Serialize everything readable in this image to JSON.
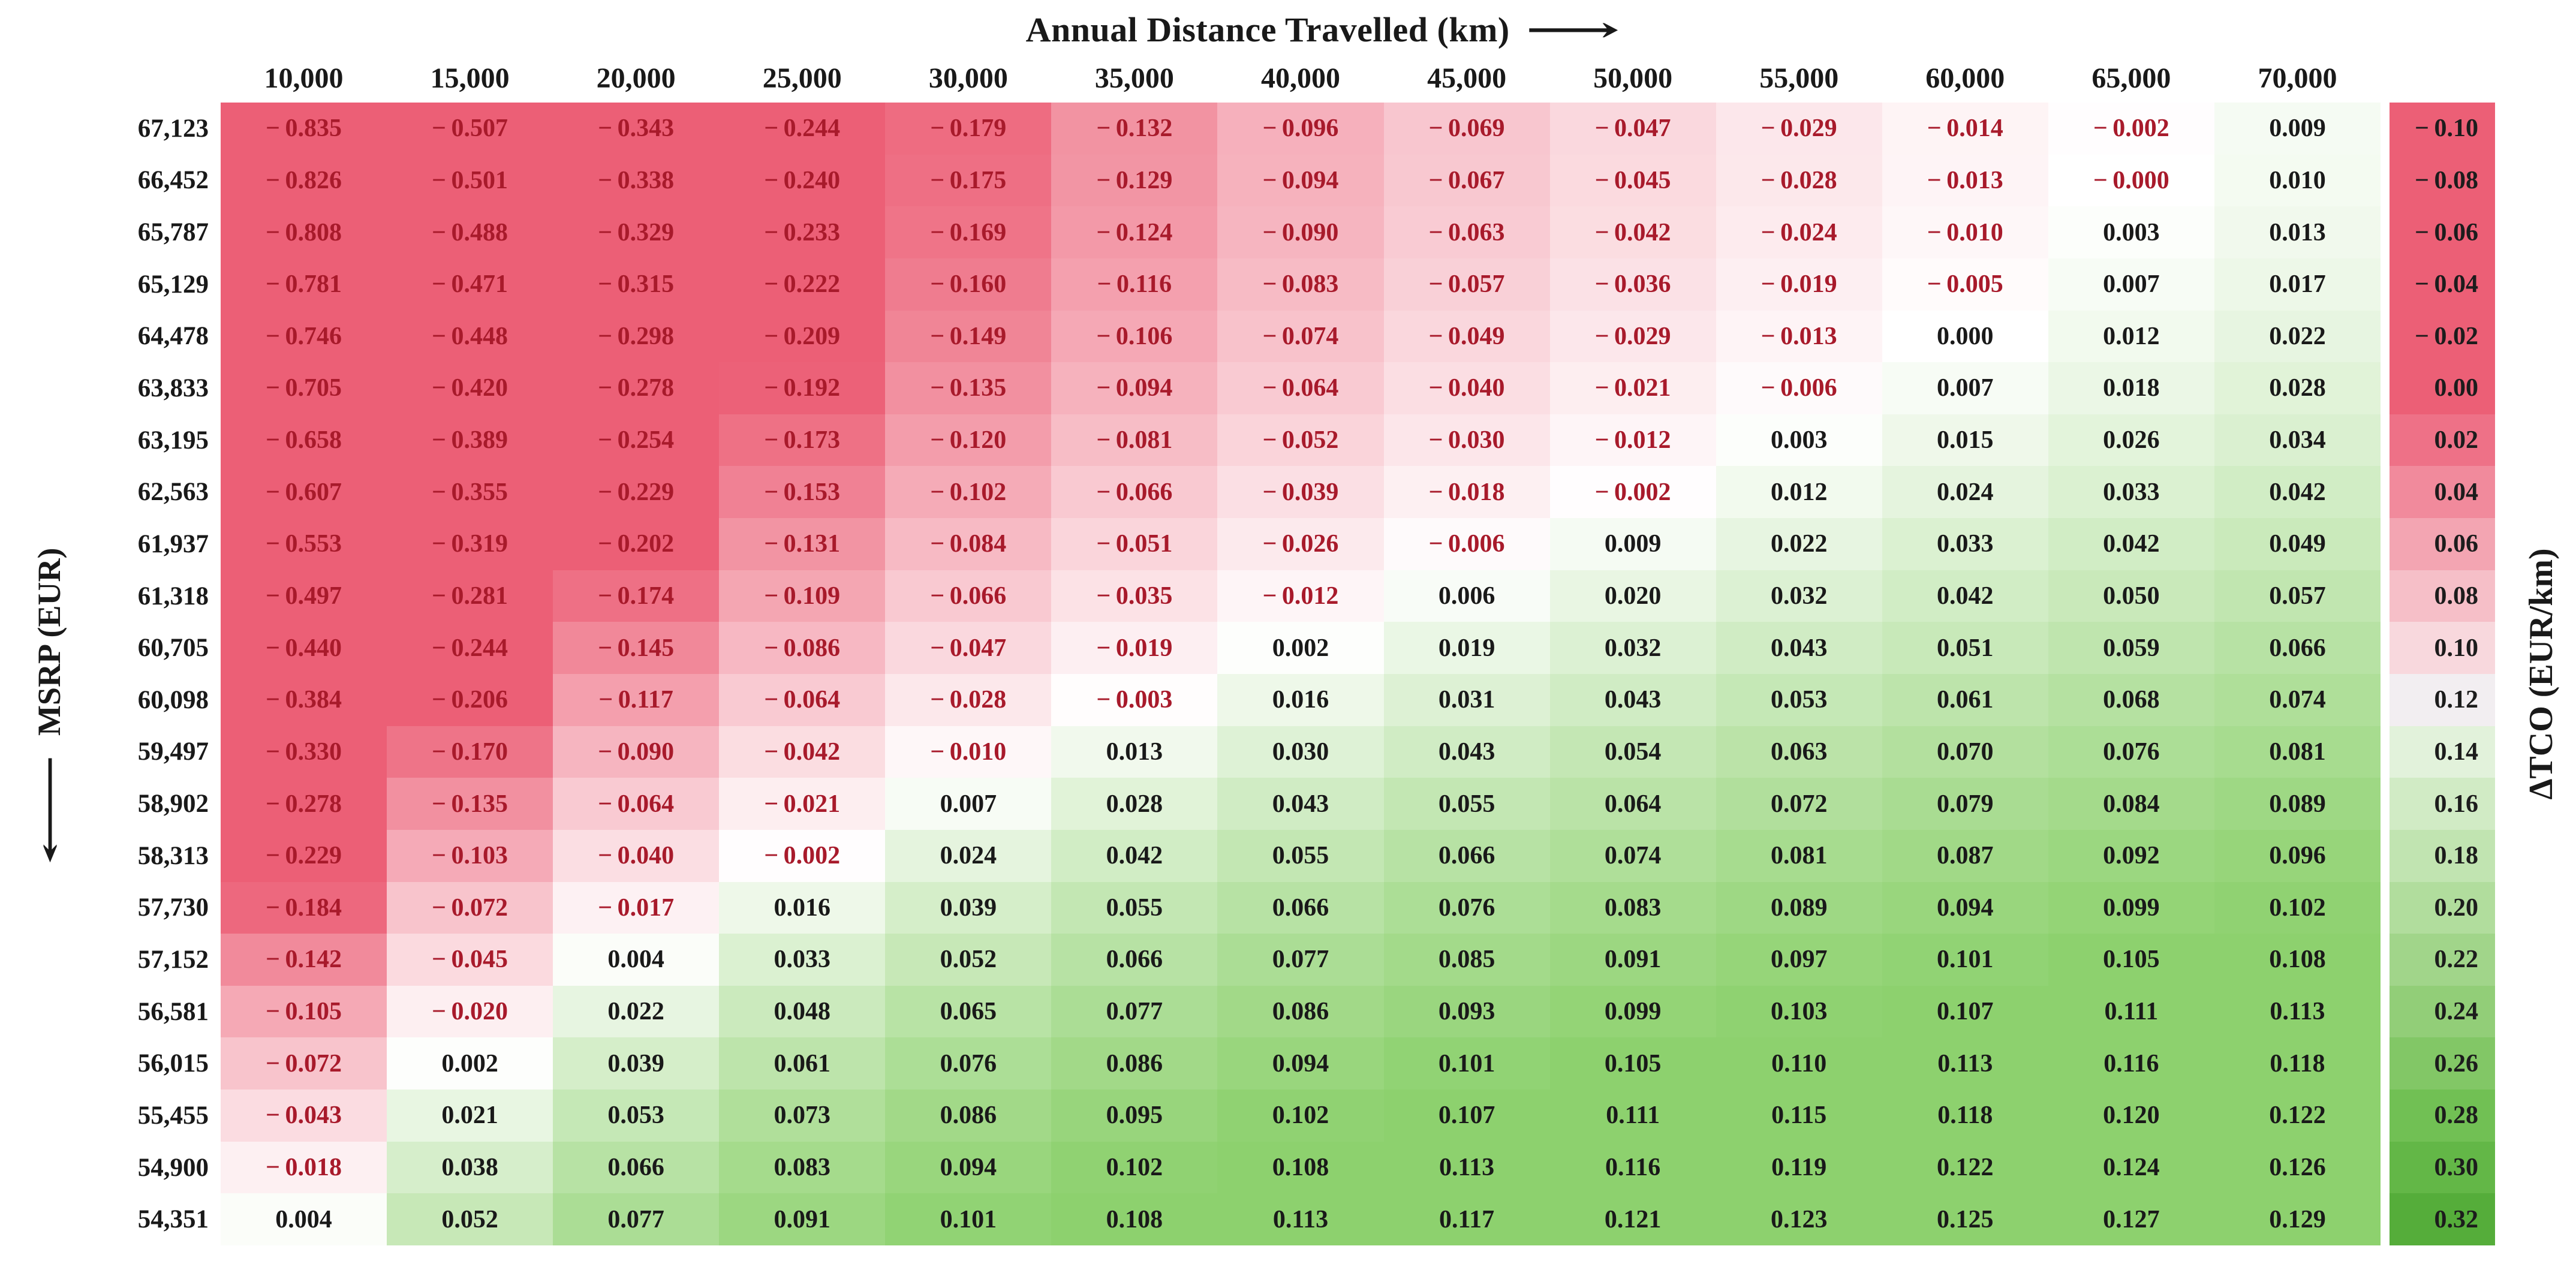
{
  "chart_data": {
    "type": "heatmap",
    "title": "Annual Distance Travelled (km)",
    "x_axis_title": "Annual Distance Travelled (km)",
    "y_axis_title": "MSRP (EUR)",
    "colorbar_title": "ΔTCO (EUR/km)",
    "columns": [
      "10,000",
      "15,000",
      "20,000",
      "25,000",
      "30,000",
      "35,000",
      "40,000",
      "45,000",
      "50,000",
      "55,000",
      "60,000",
      "65,000",
      "70,000"
    ],
    "rows": [
      "67,123",
      "66,452",
      "65,787",
      "65,129",
      "64,478",
      "63,833",
      "63,195",
      "62,563",
      "61,937",
      "61,318",
      "60,705",
      "60,098",
      "59,497",
      "58,902",
      "58,313",
      "57,730",
      "57,152",
      "56,581",
      "56,015",
      "55,455",
      "54,900",
      "54,351"
    ],
    "values": [
      [
        "-0.835",
        "-0.507",
        "-0.343",
        "-0.244",
        "-0.179",
        "-0.132",
        "-0.096",
        "-0.069",
        "-0.047",
        "-0.029",
        "-0.014",
        "-0.002",
        "0.009"
      ],
      [
        "-0.826",
        "-0.501",
        "-0.338",
        "-0.240",
        "-0.175",
        "-0.129",
        "-0.094",
        "-0.067",
        "-0.045",
        "-0.028",
        "-0.013",
        "-0.000",
        "0.010"
      ],
      [
        "-0.808",
        "-0.488",
        "-0.329",
        "-0.233",
        "-0.169",
        "-0.124",
        "-0.090",
        "-0.063",
        "-0.042",
        "-0.024",
        "-0.010",
        "0.003",
        "0.013"
      ],
      [
        "-0.781",
        "-0.471",
        "-0.315",
        "-0.222",
        "-0.160",
        "-0.116",
        "-0.083",
        "-0.057",
        "-0.036",
        "-0.019",
        "-0.005",
        "0.007",
        "0.017"
      ],
      [
        "-0.746",
        "-0.448",
        "-0.298",
        "-0.209",
        "-0.149",
        "-0.106",
        "-0.074",
        "-0.049",
        "-0.029",
        "-0.013",
        "0.000",
        "0.012",
        "0.022"
      ],
      [
        "-0.705",
        "-0.420",
        "-0.278",
        "-0.192",
        "-0.135",
        "-0.094",
        "-0.064",
        "-0.040",
        "-0.021",
        "-0.006",
        "0.007",
        "0.018",
        "0.028"
      ],
      [
        "-0.658",
        "-0.389",
        "-0.254",
        "-0.173",
        "-0.120",
        "-0.081",
        "-0.052",
        "-0.030",
        "-0.012",
        "0.003",
        "0.015",
        "0.026",
        "0.034"
      ],
      [
        "-0.607",
        "-0.355",
        "-0.229",
        "-0.153",
        "-0.102",
        "-0.066",
        "-0.039",
        "-0.018",
        "-0.002",
        "0.012",
        "0.024",
        "0.033",
        "0.042"
      ],
      [
        "-0.553",
        "-0.319",
        "-0.202",
        "-0.131",
        "-0.084",
        "-0.051",
        "-0.026",
        "-0.006",
        "0.009",
        "0.022",
        "0.033",
        "0.042",
        "0.049"
      ],
      [
        "-0.497",
        "-0.281",
        "-0.174",
        "-0.109",
        "-0.066",
        "-0.035",
        "-0.012",
        "0.006",
        "0.020",
        "0.032",
        "0.042",
        "0.050",
        "0.057"
      ],
      [
        "-0.440",
        "-0.244",
        "-0.145",
        "-0.086",
        "-0.047",
        "-0.019",
        "0.002",
        "0.019",
        "0.032",
        "0.043",
        "0.051",
        "0.059",
        "0.066"
      ],
      [
        "-0.384",
        "-0.206",
        "-0.117",
        "-0.064",
        "-0.028",
        "-0.003",
        "0.016",
        "0.031",
        "0.043",
        "0.053",
        "0.061",
        "0.068",
        "0.074"
      ],
      [
        "-0.330",
        "-0.170",
        "-0.090",
        "-0.042",
        "-0.010",
        "0.013",
        "0.030",
        "0.043",
        "0.054",
        "0.063",
        "0.070",
        "0.076",
        "0.081"
      ],
      [
        "-0.278",
        "-0.135",
        "-0.064",
        "-0.021",
        "0.007",
        "0.028",
        "0.043",
        "0.055",
        "0.064",
        "0.072",
        "0.079",
        "0.084",
        "0.089"
      ],
      [
        "-0.229",
        "-0.103",
        "-0.040",
        "-0.002",
        "0.024",
        "0.042",
        "0.055",
        "0.066",
        "0.074",
        "0.081",
        "0.087",
        "0.092",
        "0.096"
      ],
      [
        "-0.184",
        "-0.072",
        "-0.017",
        "0.016",
        "0.039",
        "0.055",
        "0.066",
        "0.076",
        "0.083",
        "0.089",
        "0.094",
        "0.099",
        "0.102"
      ],
      [
        "-0.142",
        "-0.045",
        "0.004",
        "0.033",
        "0.052",
        "0.066",
        "0.077",
        "0.085",
        "0.091",
        "0.097",
        "0.101",
        "0.105",
        "0.108"
      ],
      [
        "-0.105",
        "-0.020",
        "0.022",
        "0.048",
        "0.065",
        "0.077",
        "0.086",
        "0.093",
        "0.099",
        "0.103",
        "0.107",
        "0.111",
        "0.113"
      ],
      [
        "-0.072",
        "0.002",
        "0.039",
        "0.061",
        "0.076",
        "0.086",
        "0.094",
        "0.101",
        "0.105",
        "0.110",
        "0.113",
        "0.116",
        "0.118"
      ],
      [
        "-0.043",
        "0.021",
        "0.053",
        "0.073",
        "0.086",
        "0.095",
        "0.102",
        "0.107",
        "0.111",
        "0.115",
        "0.118",
        "0.120",
        "0.122"
      ],
      [
        "-0.018",
        "0.038",
        "0.066",
        "0.083",
        "0.094",
        "0.102",
        "0.108",
        "0.113",
        "0.116",
        "0.119",
        "0.122",
        "0.124",
        "0.126"
      ],
      [
        "0.004",
        "0.052",
        "0.077",
        "0.091",
        "0.101",
        "0.108",
        "0.113",
        "0.117",
        "0.121",
        "0.123",
        "0.125",
        "0.127",
        "0.129"
      ]
    ],
    "colorbar": {
      "labels": [
        "-0.10",
        "-0.08",
        "-0.06",
        "-0.04",
        "-0.02",
        "0.00",
        "0.02",
        "0.04",
        "0.06",
        "0.08",
        "0.10",
        "0.12",
        "0.14",
        "0.16",
        "0.18",
        "0.20",
        "0.22",
        "0.24",
        "0.26",
        "0.28",
        "0.30",
        "0.32"
      ],
      "colors": [
        "#ec5f76",
        "#ec5f76",
        "#ec5f76",
        "#ec5f76",
        "#ec5f76",
        "#ec5f76",
        "#ee7187",
        "#f18a9c",
        "#f3a5b2",
        "#f6bfc8",
        "#f8d8dd",
        "#f2eef1",
        "#e2f2db",
        "#d1ebc5",
        "#c1e4b1",
        "#b1dd9d",
        "#a1d58a",
        "#92ce78",
        "#82c766",
        "#71c054",
        "#63b747",
        "#55ad3a"
      ]
    },
    "colors": {
      "negative_text": "#a81a2b",
      "positive_text": "#191919",
      "max_red_bg": "#ec5f76",
      "max_green_bg": "#8dd16e",
      "white_bg": "#ffffff",
      "red_saturation_value": -0.195,
      "green_saturation_value": 0.105
    },
    "legend_position": "right",
    "grid": false
  }
}
